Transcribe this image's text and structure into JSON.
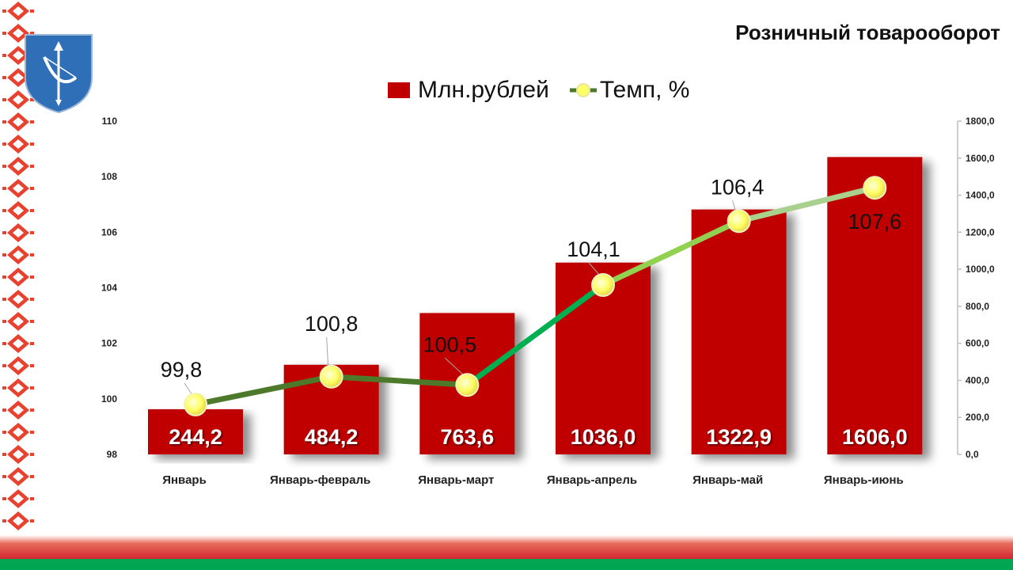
{
  "chart_data": {
    "type": "bar",
    "title": "Розничный товарооборот",
    "categories": [
      "Январь",
      "Январь-февраль",
      "Январь-март",
      "Январь-апрель",
      "Январь-май",
      "Январь-июнь"
    ],
    "series": [
      {
        "name": "Млн.рублей",
        "type": "bar",
        "axis": "right",
        "color": "#c00000",
        "values": [
          244.2,
          484.2,
          763.6,
          1036.0,
          1322.9,
          1606.0
        ],
        "labels": [
          "244,2",
          "484,2",
          "763,6",
          "1036,0",
          "1322,9",
          "1606,0"
        ]
      },
      {
        "name": "Темп, %",
        "type": "line",
        "axis": "left",
        "marker_color": "#ffff66",
        "line_colors": [
          "#4d7a2a",
          "#4d7a2a",
          "#00b050",
          "#92d050",
          "#a9d18e"
        ],
        "values": [
          99.8,
          100.8,
          100.5,
          104.1,
          106.4,
          107.6
        ],
        "labels": [
          "99,8",
          "100,8",
          "100,5",
          "104,1",
          "106,4",
          "107,6"
        ]
      }
    ],
    "y_left": {
      "range": [
        98,
        110
      ],
      "ticks": [
        "98",
        "100",
        "102",
        "104",
        "106",
        "108",
        "110"
      ]
    },
    "y_right": {
      "range": [
        0,
        1800
      ],
      "ticks": [
        "0,0",
        "200,0",
        "400,0",
        "600,0",
        "800,0",
        "1000,0",
        "1200,0",
        "1400,0",
        "1600,0",
        "1800,0"
      ]
    },
    "legend_position": "top",
    "grid": false
  },
  "decor": {
    "emblem_icon": "brest-coat-of-arms-icon",
    "ornament_icon": "belarusian-ornament",
    "flag_colors": [
      "#d22730",
      "#00a651"
    ]
  }
}
